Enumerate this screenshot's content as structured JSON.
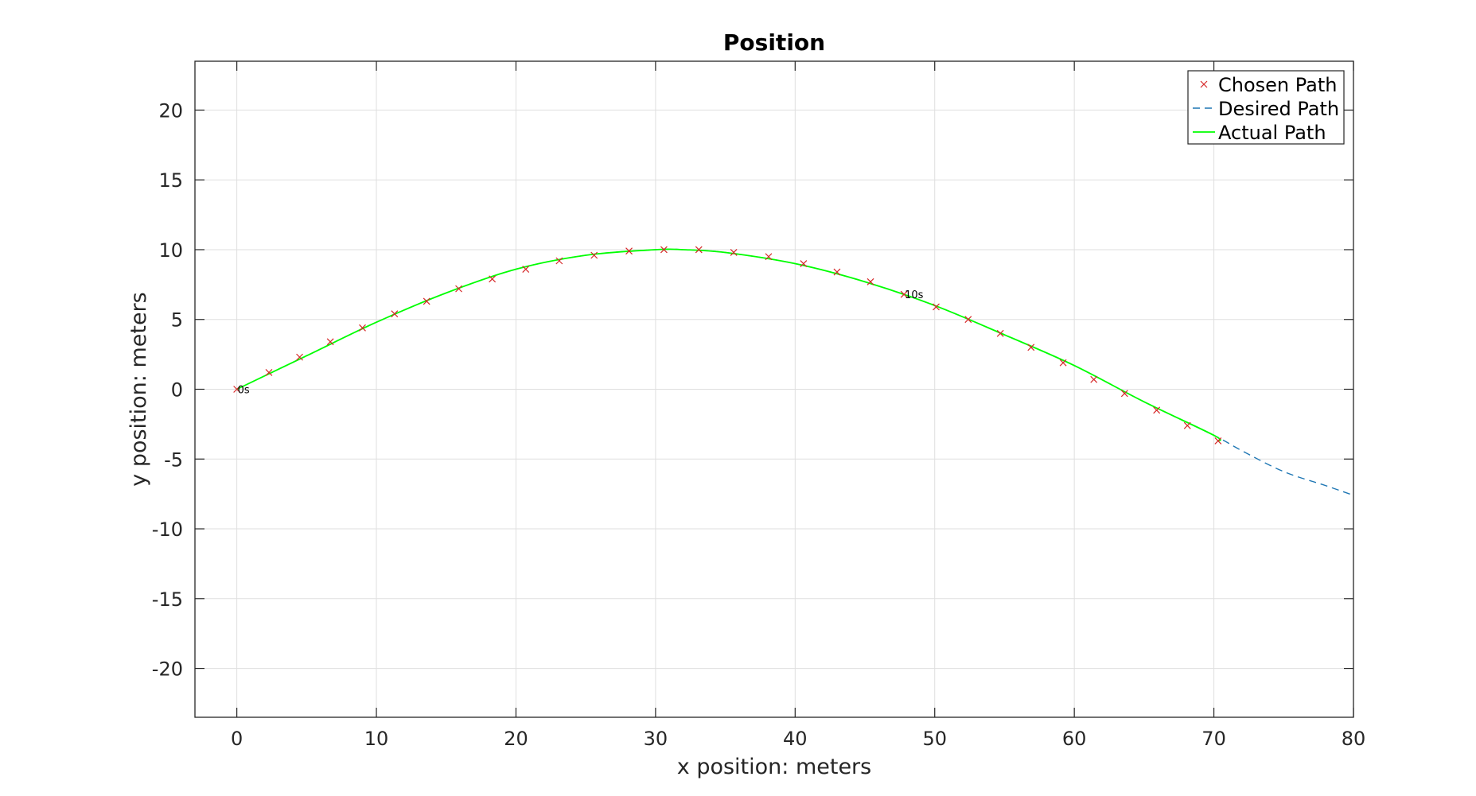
{
  "chart_data": {
    "type": "line",
    "title": "Position",
    "xlabel": "x position: meters",
    "ylabel": "y position: meters",
    "xlim": [
      -3,
      80
    ],
    "ylim": [
      -23.5,
      23.5
    ],
    "xticks": [
      0,
      10,
      20,
      30,
      40,
      50,
      60,
      70,
      80
    ],
    "yticks": [
      -20,
      -15,
      -10,
      -5,
      0,
      5,
      10,
      15,
      20
    ],
    "xtick_labels": [
      "0",
      "10",
      "20",
      "30",
      "40",
      "50",
      "60",
      "70",
      "80"
    ],
    "ytick_labels": [
      "-20",
      "-15",
      "-10",
      "-5",
      "0",
      "5",
      "10",
      "15",
      "20"
    ],
    "grid": true,
    "legend_position": "top-right",
    "series": [
      {
        "name": "Chosen Path",
        "style": "markers-x",
        "color": "#d62728",
        "x": [
          0,
          2.3,
          4.5,
          6.7,
          9.0,
          11.3,
          13.6,
          15.9,
          18.3,
          20.7,
          23.1,
          25.6,
          28.1,
          30.6,
          33.1,
          35.6,
          38.1,
          40.6,
          43.0,
          45.4,
          47.8,
          50.1,
          52.4,
          54.7,
          56.9,
          59.2,
          61.4,
          63.6,
          65.9,
          68.1,
          70.3
        ],
        "y": [
          0,
          1.2,
          2.3,
          3.4,
          4.4,
          5.4,
          6.3,
          7.2,
          7.9,
          8.6,
          9.2,
          9.6,
          9.9,
          10.0,
          10.0,
          9.8,
          9.5,
          9.0,
          8.4,
          7.7,
          6.8,
          5.9,
          5.0,
          4.0,
          3.0,
          1.9,
          0.7,
          -0.3,
          -1.5,
          -2.6,
          -3.7
        ]
      },
      {
        "name": "Desired Path",
        "style": "dashed",
        "color": "#1f77b4",
        "x": [
          0,
          5,
          10,
          15,
          20,
          25,
          30,
          32,
          35,
          40,
          45,
          50,
          55,
          60,
          65,
          70,
          72,
          75,
          78,
          80
        ],
        "y": [
          0,
          2.4,
          4.8,
          6.9,
          8.6,
          9.6,
          10.0,
          10.0,
          9.8,
          9.0,
          7.7,
          6.0,
          3.9,
          1.7,
          -0.9,
          -3.3,
          -4.4,
          -5.9,
          -6.9,
          -7.6
        ]
      },
      {
        "name": "Actual Path",
        "style": "solid",
        "color": "#00ff00",
        "x": [
          0,
          5,
          10,
          15,
          20,
          25,
          30,
          32,
          35,
          40,
          45,
          50,
          55,
          60,
          65,
          70,
          70.3
        ],
        "y": [
          0,
          2.4,
          4.8,
          6.9,
          8.6,
          9.6,
          10.0,
          10.0,
          9.8,
          9.0,
          7.7,
          6.0,
          3.9,
          1.7,
          -0.9,
          -3.3,
          -3.7
        ]
      }
    ],
    "annotations": [
      {
        "text": "0s",
        "x": 0,
        "y": 0
      },
      {
        "text": "10s",
        "x": 47.8,
        "y": 6.8
      }
    ]
  }
}
